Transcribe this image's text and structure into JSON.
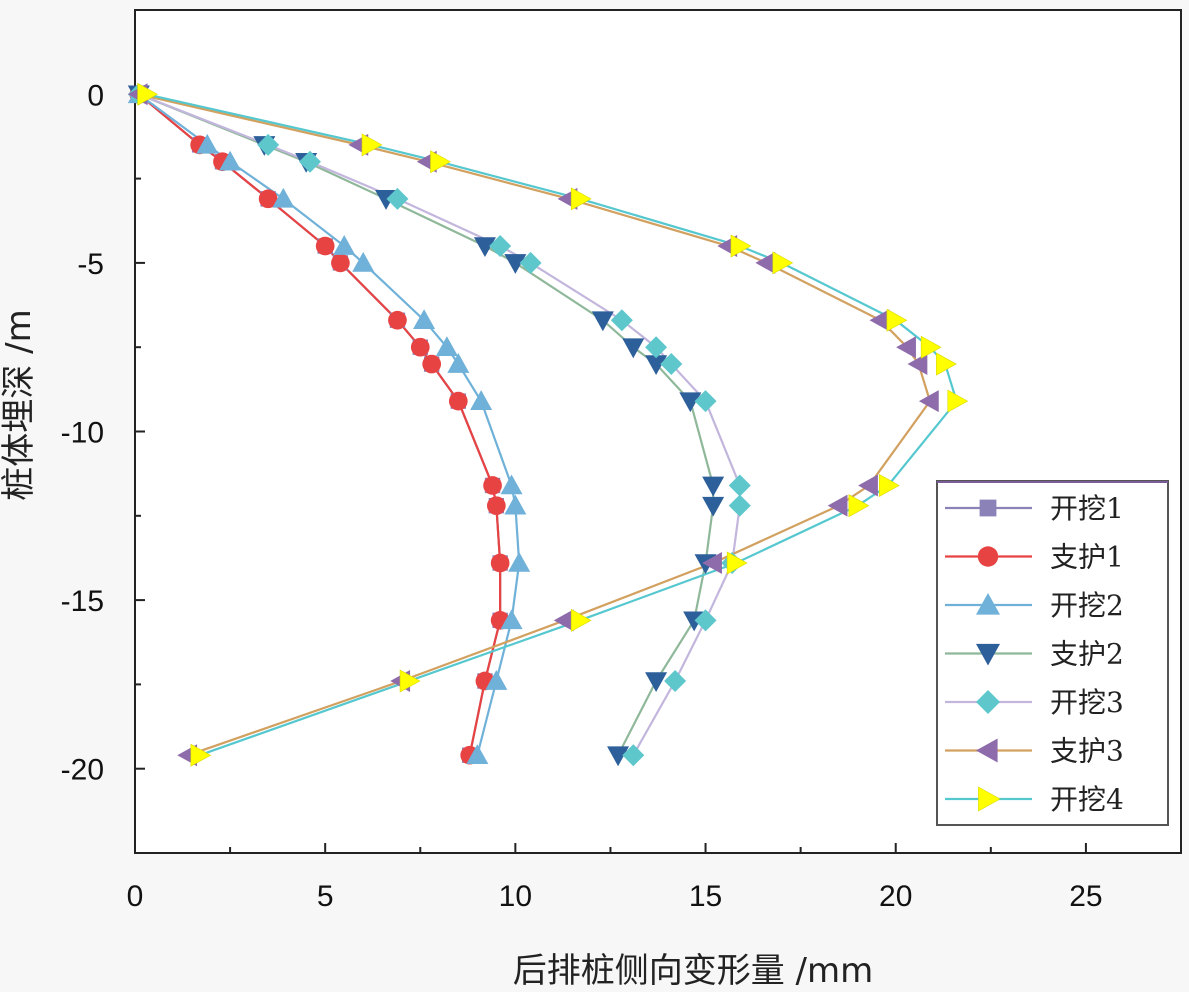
{
  "chart_data": {
    "type": "line",
    "title": "",
    "xlabel": "后排桩侧向变形量 /mm",
    "ylabel": "桩体埋深 /m",
    "xlim": [
      0,
      27.5
    ],
    "ylim": [
      -22.5,
      2.5
    ],
    "xticks": [
      0,
      5,
      10,
      15,
      20,
      25
    ],
    "yticks": [
      0,
      -5,
      -10,
      -15,
      -20
    ],
    "legend_position": "right",
    "series": [
      {
        "name": "开挖1",
        "color": "#8b82b8",
        "marker": "square",
        "x": [
          0.1,
          1.7,
          2.3,
          3.5,
          5.0,
          5.4,
          6.9,
          7.5,
          7.8,
          8.5,
          9.4,
          9.5,
          9.6,
          9.6,
          9.2,
          8.8
        ],
        "y": [
          0,
          -1.5,
          -2.0,
          -3.1,
          -4.5,
          -5.0,
          -6.7,
          -7.5,
          -8.0,
          -9.1,
          -11.6,
          -12.2,
          -13.9,
          -15.6,
          -17.4,
          -19.6
        ]
      },
      {
        "name": "支护1",
        "color": "#e84343",
        "marker": "circle",
        "x": [
          0.1,
          1.7,
          2.3,
          3.5,
          5.0,
          5.4,
          6.9,
          7.5,
          7.8,
          8.5,
          9.4,
          9.5,
          9.6,
          9.6,
          9.2,
          8.8
        ],
        "y": [
          0,
          -1.5,
          -2.0,
          -3.1,
          -4.5,
          -5.0,
          -6.7,
          -7.5,
          -8.0,
          -9.1,
          -11.6,
          -12.2,
          -13.9,
          -15.6,
          -17.4,
          -19.6
        ]
      },
      {
        "name": "开挖2",
        "color": "#6fb1d8",
        "marker": "triangle-up",
        "x": [
          0.1,
          1.9,
          2.5,
          3.9,
          5.5,
          6.0,
          7.6,
          8.2,
          8.5,
          9.1,
          9.9,
          10.0,
          10.1,
          9.9,
          9.5,
          9.0
        ],
        "y": [
          0,
          -1.5,
          -2.0,
          -3.1,
          -4.5,
          -5.0,
          -6.7,
          -7.5,
          -8.0,
          -9.1,
          -11.6,
          -12.2,
          -13.9,
          -15.6,
          -17.4,
          -19.6
        ]
      },
      {
        "name": "支护2",
        "color": "#2d5f9a",
        "line_color": "#8fb89a",
        "marker": "triangle-down",
        "x": [
          0.1,
          3.4,
          4.5,
          6.6,
          9.2,
          10.0,
          12.3,
          13.1,
          13.7,
          14.6,
          15.2,
          15.2,
          15.0,
          14.7,
          13.7,
          12.7
        ],
        "y": [
          0,
          -1.5,
          -2.0,
          -3.1,
          -4.5,
          -5.0,
          -6.7,
          -7.5,
          -8.0,
          -9.1,
          -11.6,
          -12.2,
          -13.9,
          -15.6,
          -17.4,
          -19.6
        ]
      },
      {
        "name": "开挖3",
        "color": "#5ec7cc",
        "line_color": "#c3b6dd",
        "marker": "diamond",
        "x": [
          0.1,
          3.5,
          4.6,
          6.9,
          9.6,
          10.4,
          12.8,
          13.7,
          14.1,
          15.0,
          15.9,
          15.9,
          15.7,
          15.0,
          14.2,
          13.1
        ],
        "y": [
          0,
          -1.5,
          -2.0,
          -3.1,
          -4.5,
          -5.0,
          -6.7,
          -7.5,
          -8.0,
          -9.1,
          -11.6,
          -12.2,
          -13.9,
          -15.6,
          -17.4,
          -19.6
        ]
      },
      {
        "name": "支护3",
        "color": "#8e6bab",
        "line_color": "#d2a05f",
        "marker": "triangle-left",
        "x": [
          0.1,
          5.9,
          7.7,
          11.4,
          15.6,
          16.6,
          19.6,
          20.3,
          20.6,
          20.9,
          19.3,
          18.5,
          15.2,
          11.3,
          7.0,
          1.4
        ],
        "y": [
          0,
          -1.5,
          -2.0,
          -3.1,
          -4.5,
          -5.0,
          -6.7,
          -7.5,
          -8.0,
          -9.1,
          -11.6,
          -12.2,
          -13.9,
          -15.6,
          -17.4,
          -19.6
        ]
      },
      {
        "name": "开挖4",
        "color": "#ffff00",
        "line_color": "#55c8cf",
        "marker": "triangle-right",
        "x": [
          0.3,
          6.2,
          8.0,
          11.7,
          15.9,
          17.0,
          20.0,
          20.9,
          21.3,
          21.6,
          19.8,
          19.0,
          15.8,
          11.7,
          7.2,
          1.7
        ],
        "y": [
          0,
          -1.5,
          -2.0,
          -3.1,
          -4.5,
          -5.0,
          -6.7,
          -7.5,
          -8.0,
          -9.1,
          -11.6,
          -12.2,
          -13.9,
          -15.6,
          -17.4,
          -19.6
        ]
      }
    ]
  }
}
